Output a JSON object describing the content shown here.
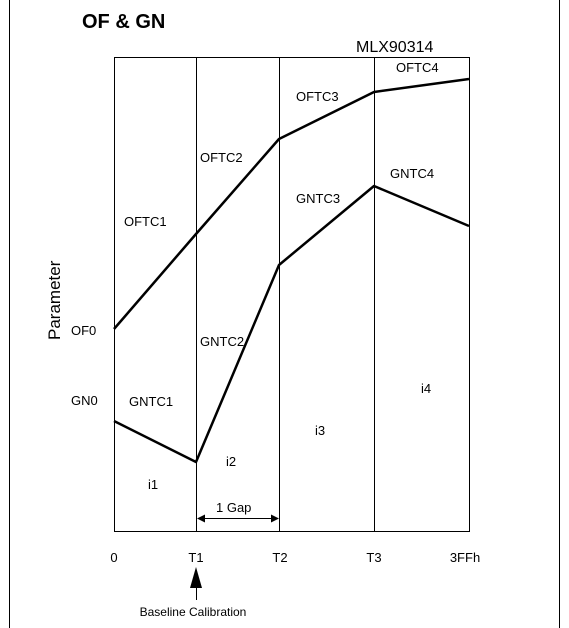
{
  "title": "OF & GN",
  "chip": "MLX90314",
  "y_axis_label": "Parameter",
  "x_ticks": [
    "0",
    "T1",
    "T2",
    "T3",
    "3FFh"
  ],
  "curve_labels": {
    "of0": "OF0",
    "gn0": "GN0",
    "oftc1": "OFTC1",
    "oftc2": "OFTC2",
    "oftc3": "OFTC3",
    "oftc4": "OFTC4",
    "gntc1": "GNTC1",
    "gntc2": "GNTC2",
    "gntc3": "GNTC3",
    "gntc4": "GNTC4"
  },
  "intervals": [
    "i1",
    "i2",
    "i3",
    "i4"
  ],
  "gap_label": "1 Gap",
  "baseline_label": "Baseline Calibration"
}
